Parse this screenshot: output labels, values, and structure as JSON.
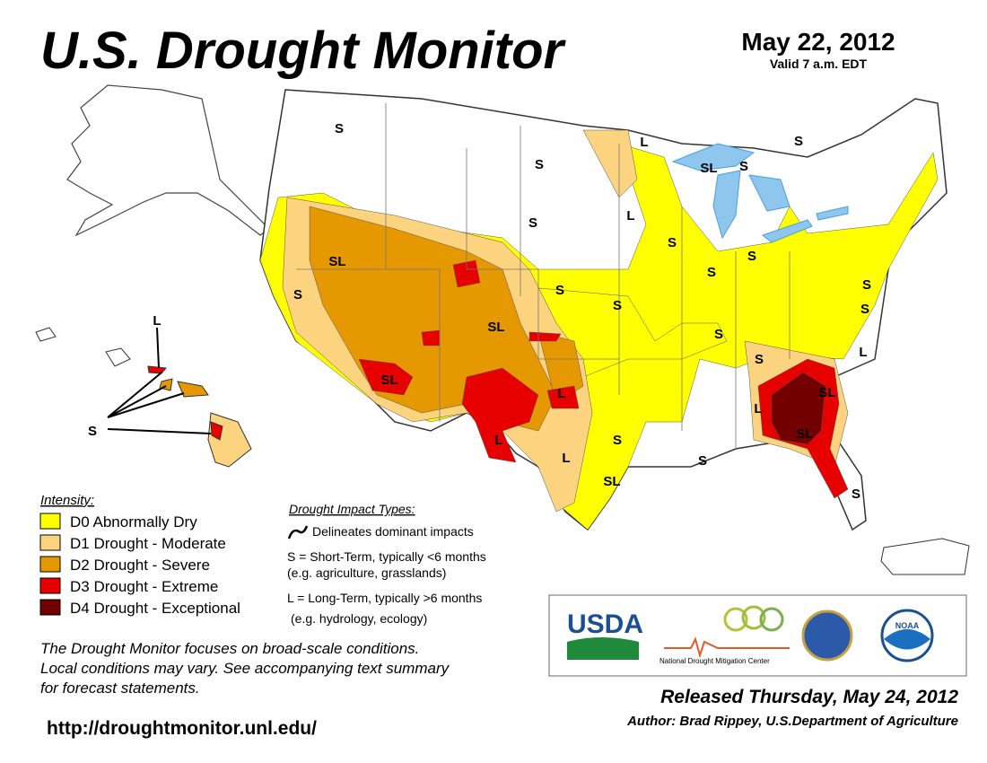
{
  "header": {
    "title": "U.S. Drought Monitor",
    "date": "May 22, 2012",
    "valid": "Valid 7 a.m. EDT"
  },
  "legend": {
    "title": "Intensity:",
    "items": [
      {
        "name": "D0 Abnormally Dry",
        "color": "#ffff00"
      },
      {
        "name": "D1 Drought - Moderate",
        "color": "#fcd37f"
      },
      {
        "name": "D2 Drought - Severe",
        "color": "#e69800"
      },
      {
        "name": "D3 Drought - Extreme",
        "color": "#e60000"
      },
      {
        "name": "D4 Drought - Exceptional",
        "color": "#730000"
      }
    ]
  },
  "impacts": {
    "title": "Drought Impact Types:",
    "lines": [
      "Delineates dominant impacts",
      "S = Short-Term, typically <6 months",
      "(e.g. agriculture, grasslands)",
      "L = Long-Term, typically >6 months",
      "(e.g. hydrology, ecology)"
    ]
  },
  "note": [
    "The Drought Monitor focuses on broad-scale conditions.",
    "Local conditions may vary. See accompanying text summary",
    "for forecast statements."
  ],
  "url": "http://droughtmonitor.unl.edu/",
  "footer": {
    "released": "Released Thursday, May 24, 2012",
    "author": "Author: Brad Rippey, U.S.Department of Agriculture"
  },
  "logos": {
    "usda": "USDA",
    "ndmc": "National Drought Mitigation Center",
    "noaa": "NOAA"
  },
  "map_labels": [
    "S",
    "S",
    "L",
    "SL",
    "S",
    "S",
    "L",
    "S",
    "S",
    "S",
    "S",
    "SL",
    "S",
    "S",
    "S",
    "SL",
    "S",
    "S",
    "S",
    "S",
    "L",
    "SL",
    "L",
    "SL",
    "L",
    "SL",
    "L",
    "S",
    "L",
    "SL",
    "S",
    "S",
    "L",
    "S"
  ]
}
